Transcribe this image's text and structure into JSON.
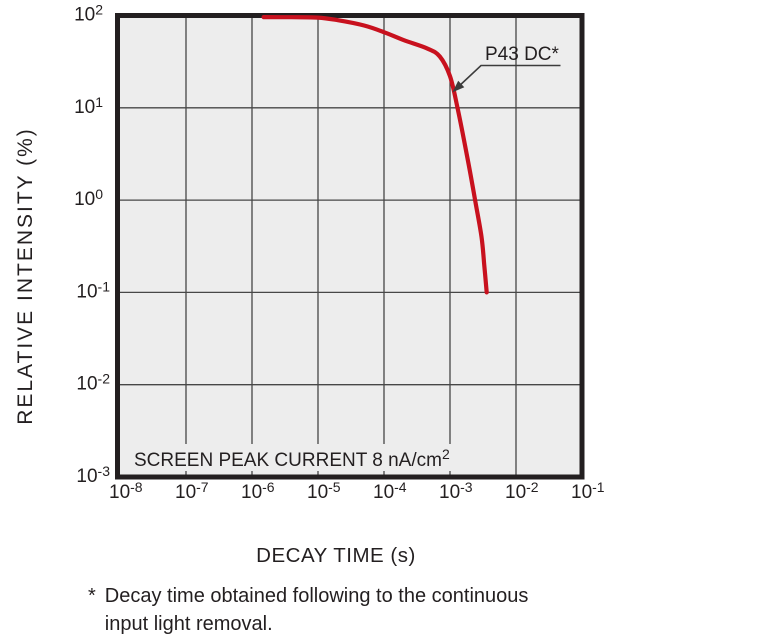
{
  "chart_data": {
    "type": "line",
    "title": "",
    "xlabel": "DECAY TIME (s)",
    "ylabel": "RELATIVE INTENSITY (%)",
    "x_scale": "log",
    "y_scale": "log",
    "xlim": [
      1e-08,
      0.1
    ],
    "ylim": [
      0.001,
      100.0
    ],
    "grid": true,
    "legend_position": "none",
    "x_tick_exponents": [
      -8,
      -7,
      -6,
      -5,
      -4,
      -3,
      -2,
      -1
    ],
    "y_tick_exponents": [
      2,
      1,
      0,
      -1,
      -2,
      -3
    ],
    "tick_base": "10",
    "plot_bg_color": "#ededed",
    "border_color": "#231f20",
    "grid_color": "#474747",
    "annotation": {
      "text": "SCREEN PEAK CURRENT 8 nA/cm",
      "sup": "2"
    },
    "series": [
      {
        "name": "P43 DC*",
        "color": "#c8111e",
        "points": [
          [
            1.5e-06,
            96
          ],
          [
            4e-06,
            95.8
          ],
          [
            1e-05,
            95
          ],
          [
            2e-05,
            89
          ],
          [
            5e-05,
            78
          ],
          [
            0.0001,
            66
          ],
          [
            0.0002,
            54
          ],
          [
            0.00045,
            44
          ],
          [
            0.0007,
            36
          ],
          [
            0.001,
            22
          ],
          [
            0.0013,
            10
          ],
          [
            0.0018,
            3.1
          ],
          [
            0.0024,
            1.0
          ],
          [
            0.003,
            0.4
          ],
          [
            0.0033,
            0.2
          ],
          [
            0.0036,
            0.1
          ]
        ]
      }
    ]
  },
  "callout": {
    "label": "P43 DC*"
  },
  "footnote": {
    "marker": "*",
    "text": "Decay time obtained following to the continuous input light removal."
  }
}
